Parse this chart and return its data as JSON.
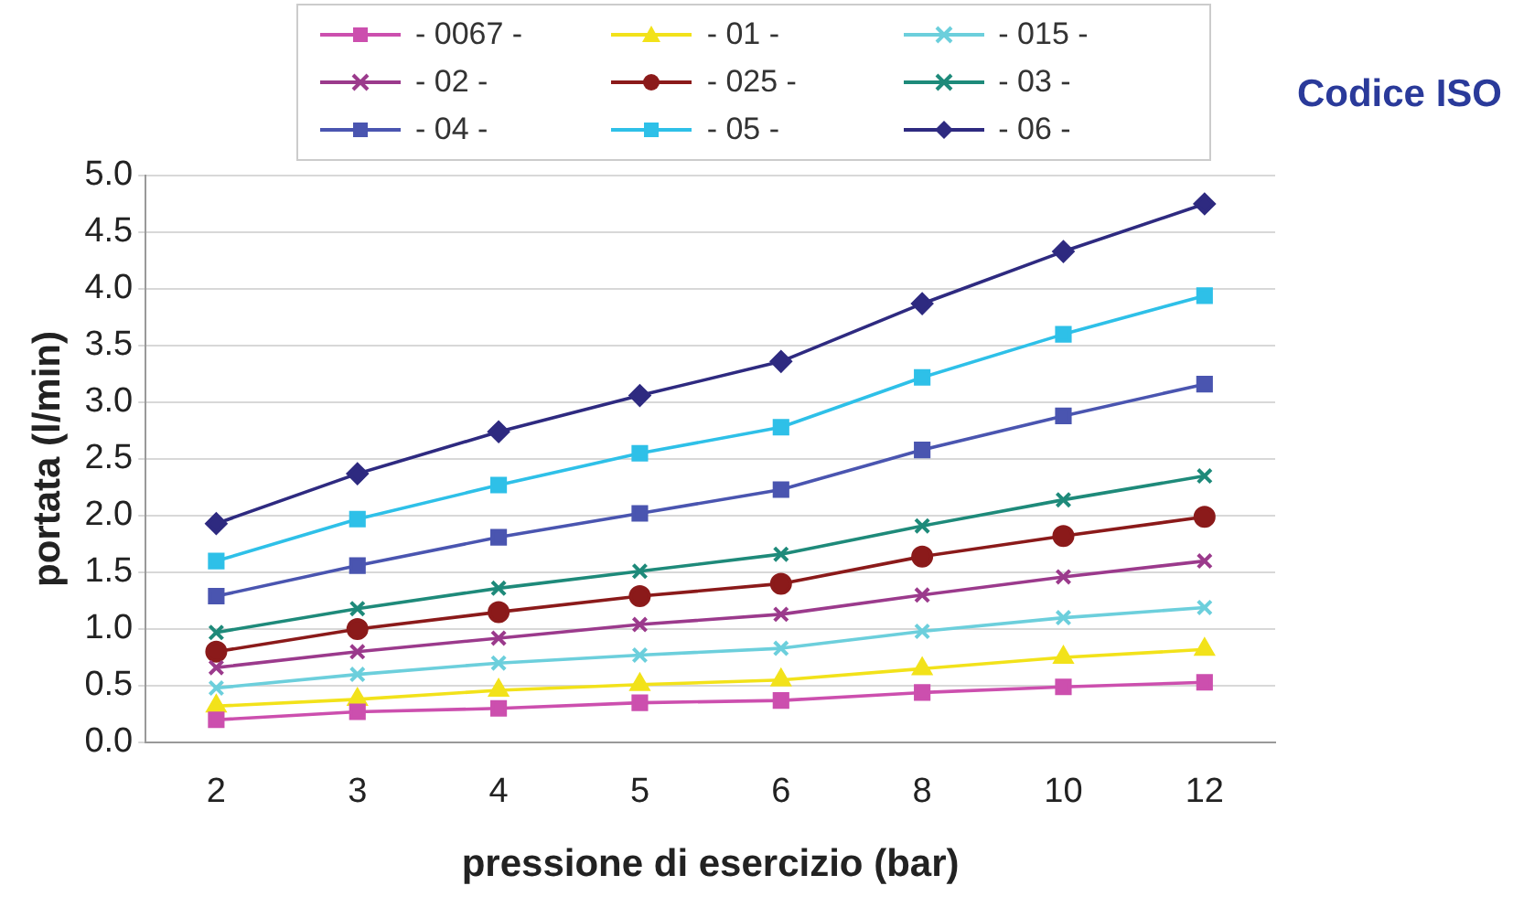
{
  "chart_data": {
    "type": "line",
    "xlabel": "pressione di esercizio (bar)",
    "ylabel": "portata (l/min)",
    "annotations": [
      "Codice ISO"
    ],
    "categories": [
      "2",
      "3",
      "4",
      "5",
      "6",
      "8",
      "10",
      "12"
    ],
    "series": [
      {
        "name": "- 0067 -",
        "color": "#cc4fae",
        "marker": "square",
        "values": [
          0.2,
          0.27,
          0.3,
          0.35,
          0.37,
          0.44,
          0.49,
          0.53
        ]
      },
      {
        "name": "- 01 -",
        "color": "#f2e21a",
        "marker": "triangle",
        "values": [
          0.32,
          0.38,
          0.46,
          0.51,
          0.55,
          0.65,
          0.75,
          0.82
        ]
      },
      {
        "name": "- 015 -",
        "color": "#6ccfdc",
        "marker": "cross",
        "values": [
          0.48,
          0.6,
          0.7,
          0.77,
          0.83,
          0.98,
          1.1,
          1.19
        ]
      },
      {
        "name": "- 02 -",
        "color": "#9b3a8c",
        "marker": "cross",
        "values": [
          0.66,
          0.8,
          0.92,
          1.04,
          1.13,
          1.3,
          1.46,
          1.6
        ]
      },
      {
        "name": "- 025 -",
        "color": "#8b1a1a",
        "marker": "circle",
        "values": [
          0.8,
          1.0,
          1.15,
          1.29,
          1.4,
          1.64,
          1.82,
          1.99
        ]
      },
      {
        "name": "- 03 -",
        "color": "#1e8a7a",
        "marker": "cross",
        "values": [
          0.97,
          1.18,
          1.36,
          1.51,
          1.66,
          1.91,
          2.14,
          2.35
        ]
      },
      {
        "name": "- 04 -",
        "color": "#4a55b0",
        "marker": "square",
        "values": [
          1.29,
          1.56,
          1.81,
          2.02,
          2.23,
          2.58,
          2.88,
          3.16
        ]
      },
      {
        "name": "- 05 -",
        "color": "#2ec0e8",
        "marker": "square",
        "values": [
          1.6,
          1.97,
          2.27,
          2.55,
          2.78,
          3.22,
          3.6,
          3.94
        ]
      },
      {
        "name": "- 06 -",
        "color": "#2e2a80",
        "marker": "diamond",
        "values": [
          1.93,
          2.37,
          2.74,
          3.06,
          3.36,
          3.87,
          4.33,
          4.75
        ]
      }
    ],
    "ylim": [
      0,
      5
    ],
    "yticks": [
      {
        "value": 0,
        "label": "0.0"
      },
      0.5,
      {
        "value": 1,
        "label": "1.0"
      },
      1.5,
      {
        "value": 2,
        "label": "2.0"
      },
      2.5,
      {
        "value": 3,
        "label": "3.0"
      },
      3.5,
      {
        "value": 4,
        "label": "4.0"
      },
      4.5,
      {
        "value": 5,
        "label": "5.0"
      }
    ],
    "grid": "y",
    "legend": "top",
    "line_style": "solid"
  }
}
